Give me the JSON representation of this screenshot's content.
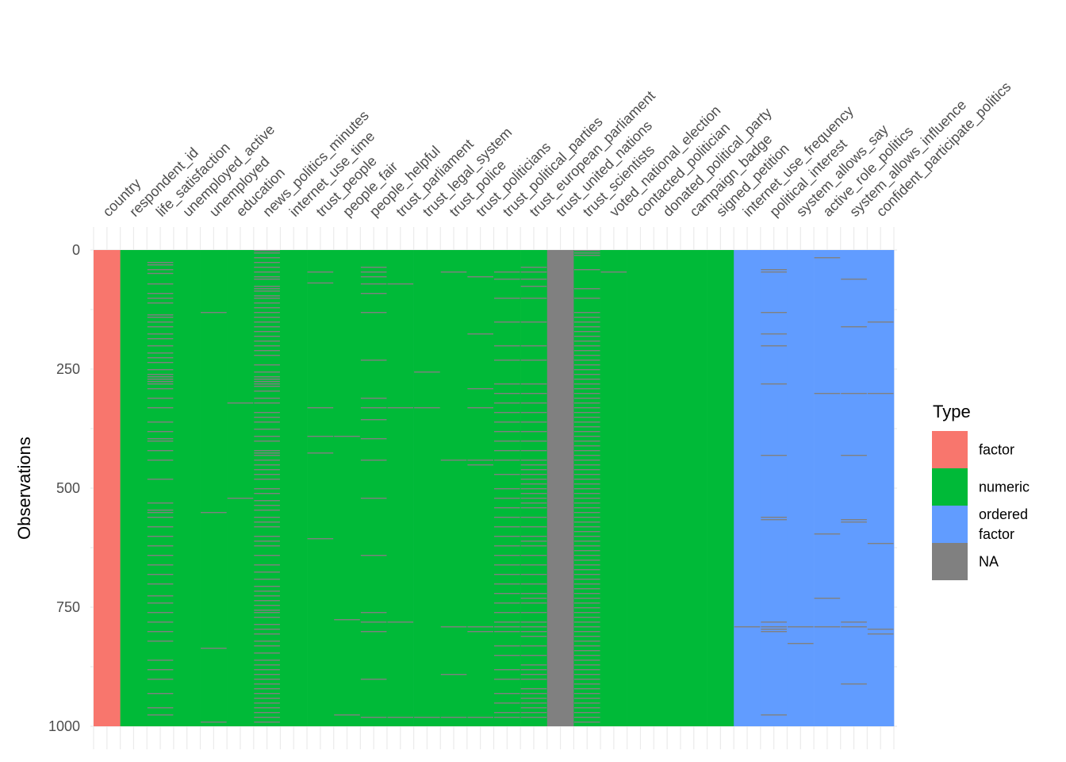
{
  "chart_data": {
    "type": "heatmap",
    "ylabel": "Observations",
    "ylim": [
      0,
      1000
    ],
    "yticks": [
      0,
      250,
      500,
      750,
      1000
    ],
    "legend": {
      "title": "Type",
      "position": "right",
      "entries": [
        {
          "label": "factor",
          "color": "#F8766D"
        },
        {
          "label": "numeric",
          "color": "#00BA38"
        },
        {
          "label": "ordered\nfactor",
          "color": "#619CFF"
        },
        {
          "label": "NA",
          "color": "#808080"
        }
      ]
    },
    "type_colors": {
      "factor": "#F8766D",
      "numeric": "#00BA38",
      "ordered factor": "#619CFF",
      "NA": "#808080"
    },
    "variables": [
      {
        "name": "country",
        "type": "factor",
        "missing_rows": []
      },
      {
        "name": "respondent_id",
        "type": "numeric",
        "missing_rows": []
      },
      {
        "name": "life_satisfaction",
        "type": "numeric",
        "missing_rows": [
          25,
          30,
          40,
          48,
          70,
          90,
          100,
          110,
          135,
          140,
          150,
          160,
          175,
          185,
          200,
          215,
          225,
          235,
          250,
          260,
          265,
          270,
          275,
          280,
          290,
          310,
          330,
          360,
          380,
          395,
          400,
          420,
          440,
          480,
          530,
          545,
          550,
          560,
          580,
          600,
          620,
          640,
          660,
          680,
          700,
          725,
          740,
          760,
          780,
          800,
          820,
          860,
          880,
          900,
          930,
          960,
          975
        ]
      },
      {
        "name": "unemployed_active",
        "type": "numeric",
        "missing_rows": []
      },
      {
        "name": "unemployed",
        "type": "numeric",
        "missing_rows": [
          130,
          550,
          835,
          990
        ]
      },
      {
        "name": "education",
        "type": "numeric",
        "missing_rows": [
          320,
          520
        ]
      },
      {
        "name": "news_politics_minutes",
        "type": "numeric",
        "missing_rows": [
          0,
          5,
          15,
          25,
          35,
          45,
          55,
          60,
          75,
          80,
          85,
          95,
          100,
          110,
          120,
          130,
          140,
          150,
          160,
          170,
          180,
          190,
          200,
          210,
          220,
          240,
          255,
          265,
          270,
          275,
          280,
          285,
          295,
          310,
          320,
          340,
          350,
          360,
          375,
          390,
          400,
          420,
          425,
          430,
          440,
          450,
          460,
          470,
          480,
          500,
          510,
          525,
          535,
          545,
          560,
          570,
          580,
          600,
          610,
          620,
          640,
          660,
          675,
          690,
          705,
          715,
          725,
          735,
          745,
          755,
          760,
          770,
          785,
          795,
          805,
          820,
          830,
          845,
          860,
          870,
          880,
          890,
          900,
          910,
          920,
          930,
          940,
          950,
          960,
          970,
          980,
          990
        ]
      },
      {
        "name": "internet_use_time",
        "type": "numeric",
        "missing_rows": []
      },
      {
        "name": "trust_people",
        "type": "numeric",
        "missing_rows": [
          45,
          68,
          330,
          390,
          425,
          605
        ]
      },
      {
        "name": "people_fair",
        "type": "numeric",
        "missing_rows": [
          390,
          775,
          975
        ]
      },
      {
        "name": "people_helpful",
        "type": "numeric",
        "missing_rows": [
          35,
          45,
          55,
          70,
          90,
          130,
          230,
          310,
          330,
          355,
          395,
          440,
          520,
          640,
          760,
          780,
          800,
          900,
          980
        ]
      },
      {
        "name": "trust_parliament",
        "type": "numeric",
        "missing_rows": [
          70,
          330,
          780,
          980
        ]
      },
      {
        "name": "trust_legal_system",
        "type": "numeric",
        "missing_rows": [
          255,
          330,
          980
        ]
      },
      {
        "name": "trust_police",
        "type": "numeric",
        "missing_rows": [
          45,
          440,
          790,
          890,
          980
        ]
      },
      {
        "name": "trust_politicians",
        "type": "numeric",
        "missing_rows": [
          55,
          175,
          290,
          330,
          440,
          450,
          790,
          800,
          980
        ]
      },
      {
        "name": "trust_political_parties",
        "type": "numeric",
        "missing_rows": [
          45,
          60,
          100,
          150,
          200,
          230,
          280,
          300,
          320,
          340,
          360,
          380,
          400,
          420,
          440,
          470,
          500,
          520,
          540,
          560,
          580,
          600,
          620,
          640,
          660,
          680,
          700,
          720,
          740,
          760,
          780,
          790,
          800,
          830,
          850,
          880,
          900,
          930,
          950,
          970,
          980
        ]
      },
      {
        "name": "trust_european_parliament",
        "type": "numeric",
        "missing_rows": [
          35,
          45,
          60,
          75,
          100,
          150,
          200,
          230,
          280,
          300,
          320,
          340,
          360,
          380,
          400,
          420,
          440,
          450,
          460,
          470,
          480,
          490,
          500,
          510,
          520,
          530,
          540,
          560,
          580,
          600,
          610,
          620,
          640,
          660,
          680,
          700,
          720,
          730,
          740,
          760,
          780,
          790,
          800,
          810,
          830,
          850,
          870,
          880,
          890,
          900,
          920,
          930,
          940,
          950,
          960,
          970,
          980
        ]
      },
      {
        "name": "trust_united_nations",
        "type": "numeric",
        "missing_rows": "all"
      },
      {
        "name": "trust_scientists",
        "type": "numeric",
        "missing_rows": [
          0,
          5,
          10,
          40,
          80,
          100,
          130,
          140,
          150,
          160,
          170,
          180,
          190,
          200,
          210,
          220,
          230,
          240,
          250,
          260,
          270,
          280,
          290,
          300,
          310,
          320,
          330,
          340,
          350,
          360,
          370,
          380,
          390,
          400,
          410,
          420,
          430,
          440,
          450,
          460,
          470,
          480,
          490,
          500,
          510,
          520,
          530,
          540,
          550,
          560,
          570,
          580,
          590,
          600,
          610,
          620,
          630,
          640,
          650,
          660,
          670,
          680,
          690,
          700,
          710,
          720,
          730,
          740,
          750,
          760,
          770,
          780,
          790,
          800,
          810,
          820,
          830,
          840,
          850,
          860,
          870,
          880,
          890,
          900,
          910,
          920,
          930,
          940,
          950,
          960,
          970,
          980,
          990
        ]
      },
      {
        "name": "voted_national_election",
        "type": "numeric",
        "missing_rows": [
          45
        ]
      },
      {
        "name": "contacted_politician",
        "type": "numeric",
        "missing_rows": []
      },
      {
        "name": "donated_political_party",
        "type": "numeric",
        "missing_rows": []
      },
      {
        "name": "campaign_badge",
        "type": "numeric",
        "missing_rows": []
      },
      {
        "name": "signed_petition",
        "type": "numeric",
        "missing_rows": []
      },
      {
        "name": "internet_use_frequency",
        "type": "ordered factor",
        "missing_rows": [
          790
        ]
      },
      {
        "name": "political_interest",
        "type": "ordered factor",
        "missing_rows": [
          40,
          45,
          130,
          175,
          200,
          280,
          430,
          560,
          565,
          780,
          790,
          795,
          800,
          975
        ]
      },
      {
        "name": "system_allows_say",
        "type": "ordered factor",
        "missing_rows": [
          790,
          825
        ]
      },
      {
        "name": "active_role_politics",
        "type": "ordered factor",
        "missing_rows": [
          15,
          300,
          595,
          730,
          790
        ]
      },
      {
        "name": "system_allows_influence",
        "type": "ordered factor",
        "missing_rows": [
          60,
          160,
          300,
          430,
          565,
          570,
          780,
          790,
          910
        ]
      },
      {
        "name": "confident_participate_politics",
        "type": "ordered factor",
        "missing_rows": [
          150,
          300,
          615,
          795,
          805
        ]
      }
    ]
  }
}
